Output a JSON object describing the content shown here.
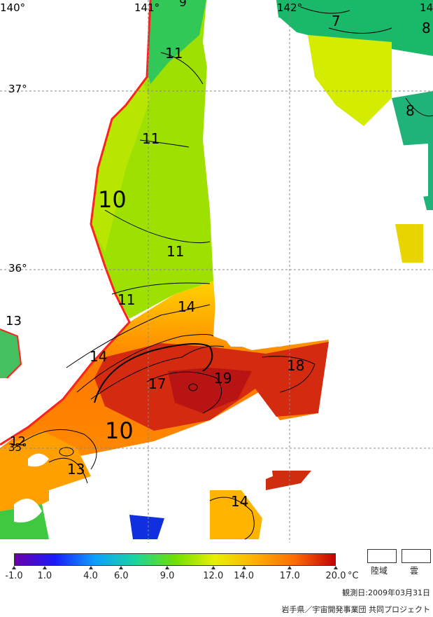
{
  "map": {
    "lat_labels": [
      "37°",
      "36°",
      "35°"
    ],
    "lon_labels": [
      "140°",
      "141°",
      "142°",
      "14"
    ],
    "contour_labels": [
      "9",
      "7",
      "8",
      "11",
      "11",
      "10",
      "11",
      "11",
      "14",
      "14",
      "19",
      "18",
      "17",
      "10",
      "13",
      "12",
      "13",
      "14",
      "8"
    ]
  },
  "colorbar": {
    "ticks": [
      "-1.0",
      "1.0",
      "4.0",
      "6.0",
      "9.0",
      "12.0",
      "14.0",
      "17.0",
      "20.0"
    ],
    "tick_values": [
      -1.0,
      1.0,
      4.0,
      6.0,
      9.0,
      12.0,
      14.0,
      17.0,
      20.0
    ],
    "range": [
      -1.0,
      20.0
    ],
    "unit": "°C",
    "colors": [
      "#6a00a8",
      "#1a1aff",
      "#0aa0ff",
      "#16d6a0",
      "#6fe000",
      "#e8f000",
      "#ffb000",
      "#ff6a00",
      "#c40000"
    ]
  },
  "legend": {
    "land_label": "陸域",
    "cloud_label": "雲"
  },
  "observation_date": "観測日:2009年03月31日",
  "credit": "岩手県／宇宙開発事業団 共同プロジェクト",
  "colors": {
    "coastline": "#ff2020",
    "contour": "#000000",
    "grid": "#888888"
  }
}
